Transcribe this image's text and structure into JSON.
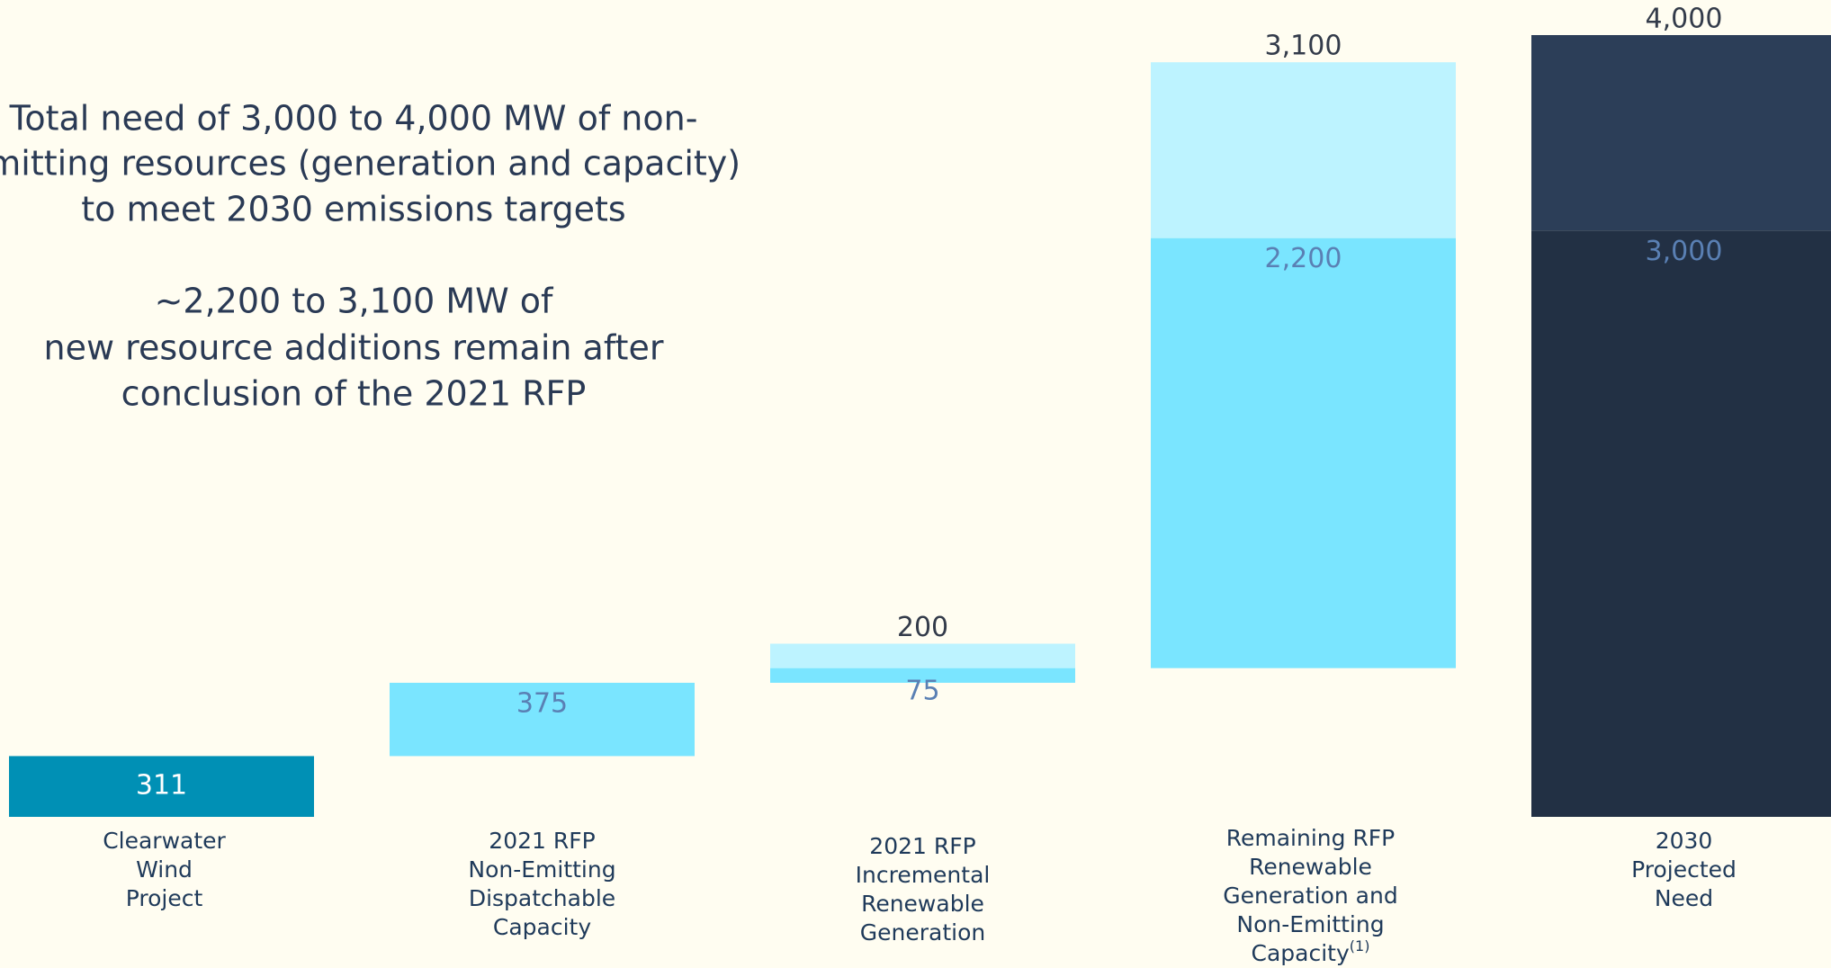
{
  "chart_data": {
    "type": "waterfall",
    "categories": [
      [
        "Clearwater",
        "Wind",
        "Project"
      ],
      [
        "2021 RFP",
        "Non-Emitting",
        "Dispatchable",
        "Capacity"
      ],
      [
        "2021 RFP",
        "Incremental",
        "Renewable",
        "Generation"
      ],
      [
        "Remaining RFP",
        "Renewable",
        "Generation and",
        "Non-Emitting",
        "Capacity"
      ],
      [
        "2030",
        "Projected",
        "Need"
      ]
    ],
    "category_notes": [
      null,
      null,
      null,
      "(1)",
      null
    ],
    "values": [
      311,
      375,
      75,
      2200,
      3000
    ],
    "value_labels": [
      "311",
      "375",
      "75",
      "2,200",
      "3,000"
    ],
    "upper_values": [
      null,
      null,
      200,
      3100,
      4000
    ],
    "upper_value_labels": [
      null,
      null,
      "200",
      "3,100",
      "4,000"
    ],
    "bar_kinds": [
      "delta",
      "delta",
      "delta",
      "delta",
      "total"
    ],
    "colors": [
      "#0090b5",
      "#7ae5ff",
      "#7ae5ff",
      "#7ae5ff",
      "#223044"
    ],
    "upper_colors": [
      null,
      null,
      "#bdf3ff",
      "#bdf3ff",
      "#2c3e58"
    ],
    "label_colors": [
      "#ffffff",
      "#5a80b4",
      "#5a80b4",
      "#5a80b4",
      "#5a80b4"
    ],
    "ylim": [
      0,
      4000
    ],
    "annotations": [
      [
        "Total need of 3,000 to 4,000 MW of non-",
        "emitting resources (generation and capacity)",
        "to meet 2030 emissions targets"
      ],
      [
        "~2,200 to 3,100 MW of",
        "new resource additions remain after",
        "conclusion of the 2021 RFP"
      ]
    ]
  }
}
